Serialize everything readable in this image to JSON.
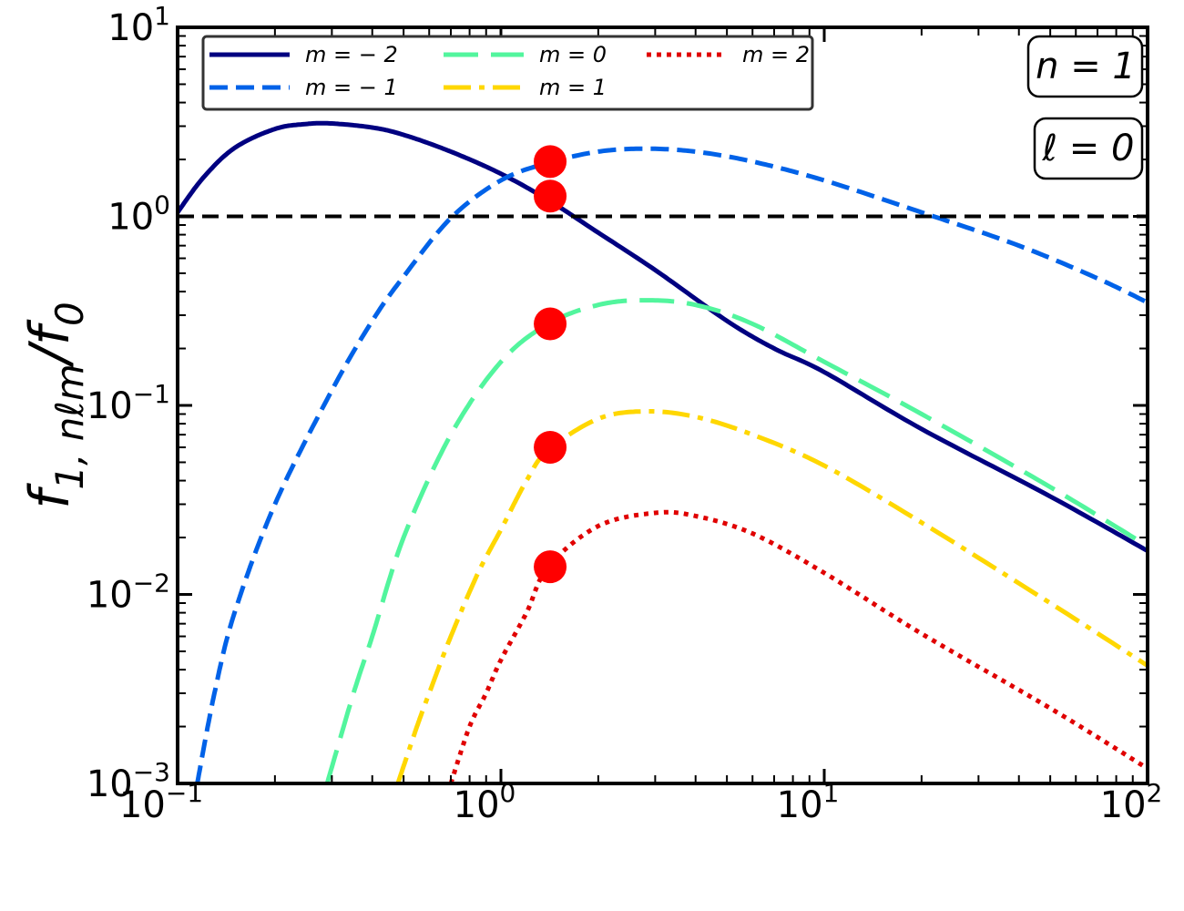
{
  "chart_data": {
    "type": "line",
    "x_scale": "log",
    "y_scale": "log",
    "xlim": [
      0.1,
      100
    ],
    "ylim": [
      0.001,
      10
    ],
    "xlabel": "",
    "ylabel": {
      "base": "f",
      "sub": "1, nℓm",
      "slash": "/",
      "base2": "f",
      "sub2": "0"
    },
    "x_ticks": [
      {
        "value": 0.1,
        "base": "10",
        "exp": "−1"
      },
      {
        "value": 1,
        "base": "10",
        "exp": "0"
      },
      {
        "value": 10,
        "base": "10",
        "exp": "1"
      },
      {
        "value": 100,
        "base": "10",
        "exp": "2"
      }
    ],
    "y_ticks": [
      {
        "value": 0.001,
        "base": "10",
        "exp": "−3"
      },
      {
        "value": 0.01,
        "base": "10",
        "exp": "−2"
      },
      {
        "value": 0.1,
        "base": "10",
        "exp": "−1"
      },
      {
        "value": 1,
        "base": "10",
        "exp": "0"
      },
      {
        "value": 10,
        "base": "10",
        "exp": "1"
      }
    ],
    "reference_line": {
      "y": 1,
      "color": "#000000",
      "style": "dashed"
    },
    "annotations": [
      {
        "id": "n",
        "label": "n = 1",
        "position": "top-right"
      },
      {
        "id": "l",
        "label": "ℓ = 0",
        "position": "top-right"
      }
    ],
    "legend": {
      "position": "top-left",
      "columns": 3
    },
    "series": [
      {
        "name": "m = − 2",
        "color": "#000080",
        "style": "solid",
        "x": [
          0.1,
          0.12,
          0.15,
          0.2,
          0.25,
          0.3,
          0.4,
          0.5,
          0.7,
          1.0,
          1.4,
          2.0,
          3.0,
          5.0,
          7.0,
          10,
          20,
          50,
          100
        ],
        "y": [
          1.05,
          1.6,
          2.3,
          2.9,
          3.08,
          3.1,
          2.95,
          2.7,
          2.2,
          1.68,
          1.22,
          0.82,
          0.52,
          0.28,
          0.2,
          0.15,
          0.075,
          0.033,
          0.017
        ]
      },
      {
        "name": "m = − 1",
        "color": "#0062e8",
        "style": "dashed",
        "x": [
          0.115,
          0.13,
          0.15,
          0.2,
          0.3,
          0.4,
          0.5,
          0.7,
          1.0,
          1.4,
          2.0,
          2.8,
          4.0,
          6.0,
          10,
          20,
          40,
          70,
          100
        ],
        "y": [
          0.001,
          0.003,
          0.008,
          0.03,
          0.12,
          0.28,
          0.48,
          0.98,
          1.55,
          1.92,
          2.2,
          2.28,
          2.2,
          1.95,
          1.55,
          1.05,
          0.7,
          0.47,
          0.35
        ]
      },
      {
        "name": "m = 0",
        "color": "#52f59d",
        "style": "longdash",
        "x": [
          0.29,
          0.35,
          0.4,
          0.5,
          0.7,
          1.0,
          1.4,
          2.0,
          2.8,
          4.0,
          6.0,
          10,
          20,
          50,
          100
        ],
        "y": [
          0.001,
          0.003,
          0.006,
          0.02,
          0.07,
          0.17,
          0.27,
          0.34,
          0.36,
          0.34,
          0.27,
          0.17,
          0.09,
          0.037,
          0.018
        ]
      },
      {
        "name": "m = 1",
        "color": "#ffd700",
        "style": "dashdot",
        "x": [
          0.48,
          0.55,
          0.6,
          0.7,
          0.85,
          1.0,
          1.2,
          1.4,
          2.0,
          2.8,
          4.0,
          6.0,
          10,
          20,
          50,
          100
        ],
        "y": [
          0.001,
          0.002,
          0.003,
          0.006,
          0.013,
          0.022,
          0.04,
          0.058,
          0.085,
          0.093,
          0.087,
          0.07,
          0.048,
          0.024,
          0.009,
          0.0042
        ]
      },
      {
        "name": "m = 2",
        "color": "#e00000",
        "style": "dotted",
        "x": [
          0.7,
          0.8,
          0.9,
          1.0,
          1.2,
          1.4,
          2.0,
          3.0,
          4.0,
          6.0,
          10,
          20,
          50,
          100
        ],
        "y": [
          0.001,
          0.002,
          0.003,
          0.0045,
          0.008,
          0.014,
          0.023,
          0.027,
          0.026,
          0.021,
          0.013,
          0.0062,
          0.0025,
          0.0012
        ]
      }
    ],
    "markers": {
      "color": "#ff0000",
      "points": [
        {
          "x": 1.42,
          "y": 1.95
        },
        {
          "x": 1.42,
          "y": 1.28
        },
        {
          "x": 1.42,
          "y": 0.27
        },
        {
          "x": 1.42,
          "y": 0.06
        },
        {
          "x": 1.42,
          "y": 0.014
        }
      ]
    }
  }
}
